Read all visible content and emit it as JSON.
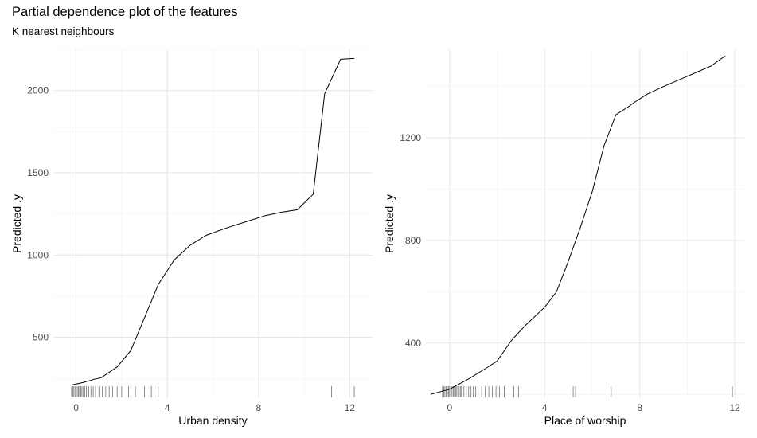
{
  "title": "Partial dependence plot of the features",
  "subtitle": "K nearest neighbours",
  "chart_data": [
    {
      "type": "line",
      "xlabel": "Urban density",
      "ylabel": "Predicted .y",
      "xlim": [
        -1.0,
        13.0
      ],
      "ylim": [
        130,
        2250
      ],
      "xticks": [
        0,
        4,
        8,
        12
      ],
      "yticks": [
        500,
        1000,
        1500,
        2000
      ],
      "grid": true,
      "x": [
        -0.2,
        0.3,
        0.8,
        1.1,
        1.8,
        2.4,
        3.0,
        3.6,
        4.3,
        5.0,
        5.7,
        6.6,
        7.4,
        8.3,
        9.0,
        9.7,
        10.4,
        10.9,
        11.6,
        12.2
      ],
      "y": [
        210,
        225,
        245,
        255,
        320,
        420,
        620,
        820,
        970,
        1060,
        1120,
        1165,
        1200,
        1240,
        1260,
        1275,
        1370,
        1980,
        2190,
        2195
      ],
      "rug": [
        -0.2,
        -0.15,
        -0.1,
        -0.05,
        0.0,
        0.05,
        0.1,
        0.15,
        0.2,
        0.25,
        0.3,
        0.38,
        0.45,
        0.55,
        0.65,
        0.75,
        0.85,
        1.0,
        1.15,
        1.3,
        1.45,
        1.6,
        1.8,
        2.0,
        2.3,
        2.6,
        3.0,
        3.3,
        3.6,
        11.2,
        12.2
      ]
    },
    {
      "type": "line",
      "xlabel": "Place of worship",
      "ylabel": "Predicted .y",
      "xlim": [
        -1.0,
        12.4
      ],
      "ylim": [
        185,
        1545
      ],
      "xticks": [
        0,
        4,
        8,
        12
      ],
      "yticks": [
        400,
        800,
        1200
      ],
      "grid": true,
      "x": [
        -0.8,
        0.0,
        0.8,
        1.5,
        2.0,
        2.6,
        3.2,
        4.0,
        4.5,
        5.0,
        5.5,
        6.0,
        6.5,
        7.0,
        7.5,
        7.8,
        8.3,
        9.0,
        10.0,
        11.0,
        11.6
      ],
      "y": [
        200,
        220,
        260,
        300,
        330,
        410,
        470,
        540,
        600,
        720,
        850,
        990,
        1170,
        1290,
        1320,
        1340,
        1370,
        1400,
        1440,
        1480,
        1520
      ],
      "rug": [
        -0.3,
        -0.25,
        -0.2,
        -0.15,
        -0.1,
        -0.05,
        0.0,
        0.05,
        0.1,
        0.15,
        0.2,
        0.25,
        0.3,
        0.35,
        0.4,
        0.45,
        0.5,
        0.6,
        0.7,
        0.8,
        0.9,
        1.0,
        1.1,
        1.2,
        1.35,
        1.5,
        1.65,
        1.8,
        1.95,
        2.1,
        2.3,
        2.5,
        2.7,
        2.9,
        5.2,
        5.3,
        6.8,
        11.9
      ]
    }
  ]
}
